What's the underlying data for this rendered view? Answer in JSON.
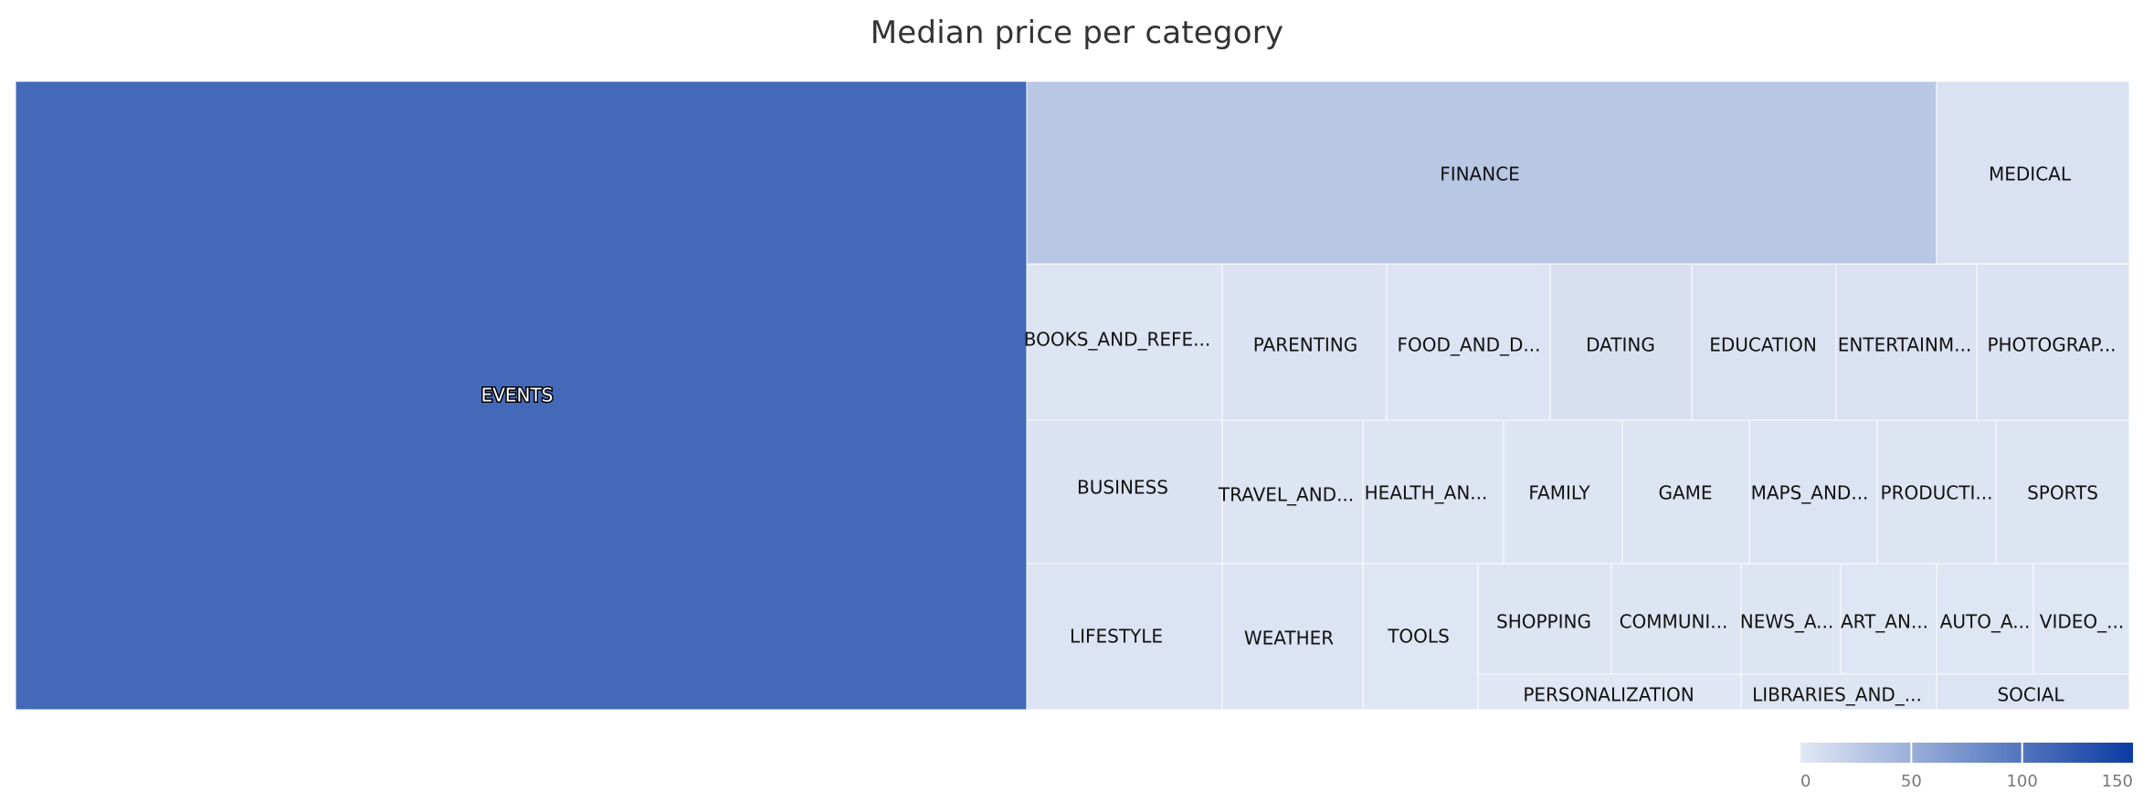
{
  "chart_data": {
    "type": "treemap",
    "title": "Median price per category",
    "categories": [
      {
        "name": "EVENTS",
        "value": 109.99
      },
      {
        "name": "FINANCE",
        "value": 28.99
      },
      {
        "name": "MEDICAL",
        "value": 5.49
      },
      {
        "name": "BOOKS_AND_REFE...",
        "value": 3.49
      },
      {
        "name": "PARENTING",
        "value": 4.79
      },
      {
        "name": "FOOD_AND_D...",
        "value": 4.49
      },
      {
        "name": "DATING",
        "value": 6.99
      },
      {
        "name": "EDUCATION",
        "value": 5.49
      },
      {
        "name": "ENTERTAINM...",
        "value": 4.99
      },
      {
        "name": "PHOTOGRAP...",
        "value": 4.99
      },
      {
        "name": "BUSINESS",
        "value": 4.99
      },
      {
        "name": "TRAVEL_AND...",
        "value": 3.49
      },
      {
        "name": "HEALTH_AN...",
        "value": 2.99
      },
      {
        "name": "FAMILY",
        "value": 2.99
      },
      {
        "name": "GAME",
        "value": 2.99
      },
      {
        "name": "MAPS_AND...",
        "value": 3.99
      },
      {
        "name": "PRODUCTI...",
        "value": 2.99
      },
      {
        "name": "SPORTS",
        "value": 2.99
      },
      {
        "name": "LIFESTYLE",
        "value": 4.49
      },
      {
        "name": "WEATHER",
        "value": 3.99
      },
      {
        "name": "TOOLS",
        "value": 1.99
      },
      {
        "name": "SHOPPING",
        "value": 2.99
      },
      {
        "name": "COMMUNI...",
        "value": 2.99
      },
      {
        "name": "NEWS_A...",
        "value": 2.99
      },
      {
        "name": "ART_AN...",
        "value": 1.99
      },
      {
        "name": "AUTO_A...",
        "value": 1.99
      },
      {
        "name": "VIDEO_...",
        "value": 2.49
      },
      {
        "name": "PERSONALIZATION",
        "value": 1.49
      },
      {
        "name": "LIBRARIES_AND_...",
        "value": 2.99
      },
      {
        "name": "SOCIAL",
        "value": 3.99
      }
    ],
    "colorscale": {
      "min": 0,
      "max": 150,
      "low_color": "#e2e8f4",
      "high_color": "#0b3ba3",
      "ticks": [
        0,
        50,
        100,
        150
      ],
      "tick_labels": [
        "0",
        "50",
        "100",
        "150"
      ]
    },
    "legend_placement": "bottom-right"
  }
}
